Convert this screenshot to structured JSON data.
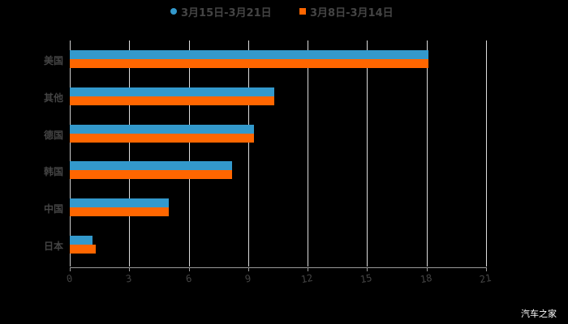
{
  "chart_data": {
    "type": "bar",
    "orientation": "horizontal",
    "title": "",
    "xlabel": "",
    "ylabel": "",
    "categories": [
      "美国",
      "其他",
      "德国",
      "韩国",
      "中国",
      "日本"
    ],
    "series": [
      {
        "name": "3月15日-3月21日",
        "color": "#3399cc",
        "values": [
          18.1,
          10.3,
          9.3,
          8.2,
          5.0,
          1.15
        ]
      },
      {
        "name": "3月8日-3月14日",
        "color": "#ff6600",
        "values": [
          18.1,
          10.3,
          9.3,
          8.2,
          5.0,
          1.3
        ]
      }
    ],
    "xlim": [
      0,
      21
    ],
    "xticks": [
      "0",
      "3",
      "6",
      "9",
      "12",
      "15",
      "18",
      "21"
    ],
    "grid": true,
    "legend_position": "top"
  },
  "legend": {
    "series1": "3月15日-3月21日",
    "series2": "3月8日-3月14日"
  },
  "watermark": "汽车之家"
}
